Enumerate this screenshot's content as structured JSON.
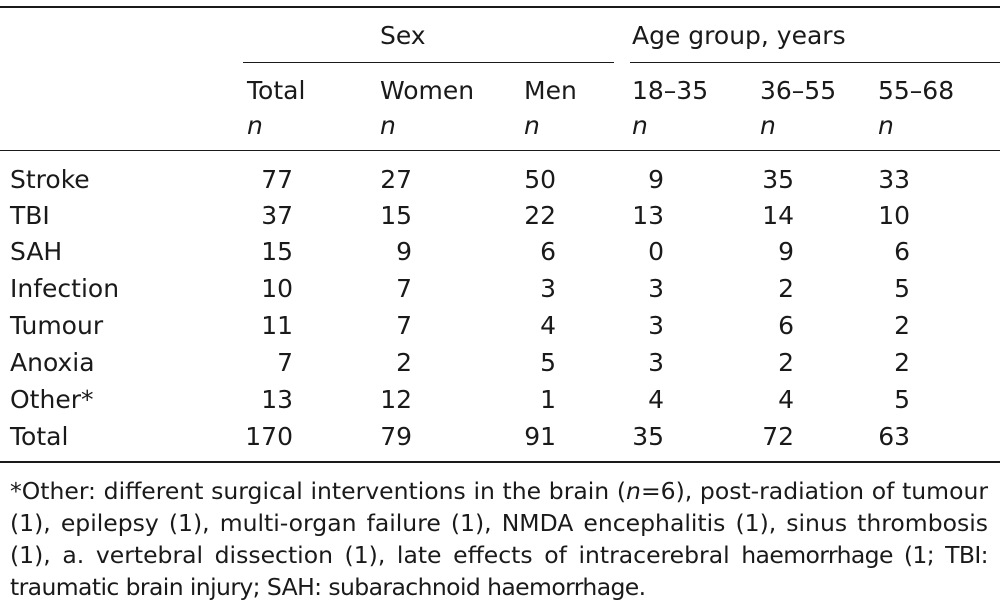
{
  "headers": {
    "sex_group": "Sex",
    "age_group": "Age group, years",
    "columns": [
      {
        "label": "Total",
        "unit": "n"
      },
      {
        "label": "Women",
        "unit": "n"
      },
      {
        "label": "Men",
        "unit": "n"
      },
      {
        "label": "18–35",
        "unit": "n"
      },
      {
        "label": "36–55",
        "unit": "n"
      },
      {
        "label": "55–68",
        "unit": "n"
      }
    ]
  },
  "rows": [
    {
      "label": "Stroke",
      "values": [
        "77",
        "27",
        "50",
        "9",
        "35",
        "33"
      ]
    },
    {
      "label": "TBI",
      "values": [
        "37",
        "15",
        "22",
        "13",
        "14",
        "10"
      ]
    },
    {
      "label": "SAH",
      "values": [
        "15",
        "9",
        "6",
        "0",
        "9",
        "6"
      ]
    },
    {
      "label": "Infection",
      "values": [
        "10",
        "7",
        "3",
        "3",
        "2",
        "5"
      ]
    },
    {
      "label": "Tumour",
      "values": [
        "11",
        "7",
        "4",
        "3",
        "6",
        "2"
      ]
    },
    {
      "label": "Anoxia",
      "values": [
        "7",
        "2",
        "5",
        "3",
        "2",
        "2"
      ]
    },
    {
      "label": "Other*",
      "values": [
        "13",
        "12",
        "1",
        "4",
        "4",
        "5"
      ]
    },
    {
      "label": "Total",
      "values": [
        "170",
        "79",
        "91",
        "35",
        "72",
        "63"
      ]
    }
  ],
  "footnote": {
    "part1": "*Other: different surgical interventions in the brain (",
    "n_symbol": "n",
    "part2": "=6), post-radiation of tumour (1), epilepsy (1), multi-organ failure (1), NMDA encephalitis (1), sinus thrombosis (1), a. vertebral dissection (1), late effects of intracerebral ",
    "part3": "haemorrhage (1; TBI: traumatic brain injury; SAH: subarachnoid haemorrhage."
  }
}
